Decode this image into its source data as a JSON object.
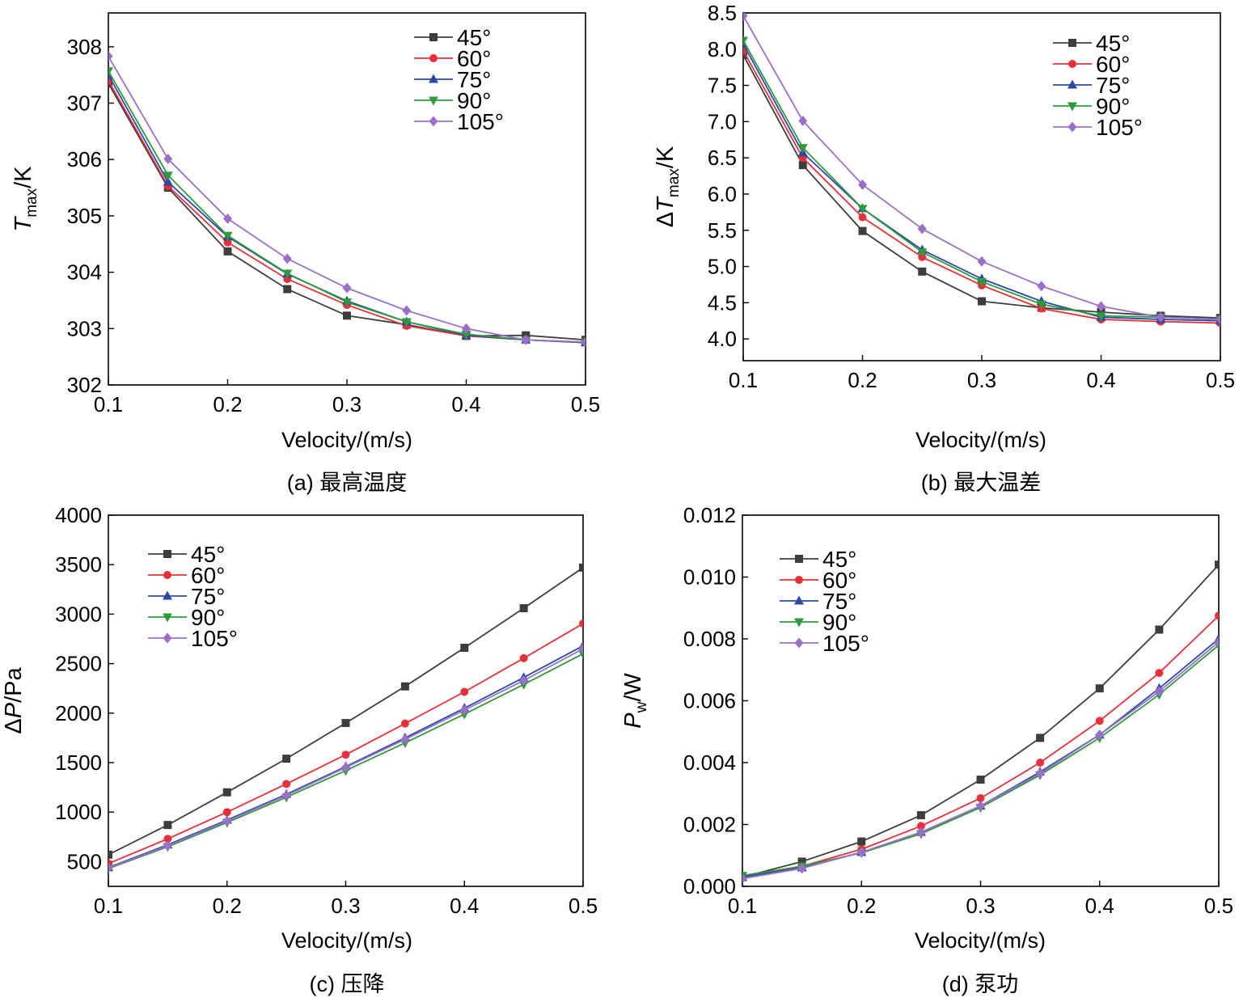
{
  "colors": {
    "45°": "#3d3d3d",
    "60°": "#e8303a",
    "75°": "#2c49a8",
    "90°": "#2e9a3c",
    "105°": "#9b6fc8"
  },
  "chart_data": [
    {
      "type": "line",
      "caption": "(a) 最高温度",
      "xlabel": "Velocity/(m/s)",
      "ylabel_symbol": "T",
      "ylabel_sub": "max",
      "ylabel_unit": "/K",
      "xlim": [
        0.1,
        0.5
      ],
      "ylim": [
        302,
        308.6
      ],
      "xticks": [
        "0.1",
        "0.2",
        "0.3",
        "0.4",
        "0.5"
      ],
      "yticks": [
        "302",
        "303",
        "304",
        "305",
        "306",
        "307",
        "308"
      ],
      "x": [
        0.1,
        0.15,
        0.2,
        0.25,
        0.3,
        0.35,
        0.4,
        0.45,
        0.5
      ],
      "series": [
        {
          "name": "45°",
          "marker": "square",
          "values": [
            307.35,
            305.5,
            304.37,
            303.7,
            303.23,
            303.07,
            302.87,
            302.88,
            302.8
          ]
        },
        {
          "name": "60°",
          "marker": "circle",
          "values": [
            307.4,
            305.53,
            304.53,
            303.88,
            303.42,
            303.05,
            302.87,
            302.8,
            302.75
          ]
        },
        {
          "name": "75°",
          "marker": "triangle-up",
          "values": [
            307.5,
            305.6,
            304.63,
            303.97,
            303.49,
            303.12,
            302.88,
            302.8,
            302.75
          ]
        },
        {
          "name": "90°",
          "marker": "triangle-down",
          "values": [
            307.57,
            305.72,
            304.65,
            303.98,
            303.47,
            303.12,
            302.9,
            302.8,
            302.76
          ]
        },
        {
          "name": "105°",
          "marker": "diamond",
          "values": [
            307.83,
            306.01,
            304.95,
            304.24,
            303.72,
            303.32,
            303.0,
            302.8,
            302.76
          ]
        }
      ]
    },
    {
      "type": "line",
      "caption": "(b) 最大温差",
      "xlabel": "Velocity/(m/s)",
      "ylabel_symbol": "ΔT",
      "ylabel_sub": "max",
      "ylabel_unit": "/K",
      "xlim": [
        0.1,
        0.5
      ],
      "ylim": [
        3.7,
        8.5
      ],
      "xticks": [
        "0.1",
        "0.2",
        "0.3",
        "0.4",
        "0.5"
      ],
      "yticks": [
        "4.0",
        "4.5",
        "5.0",
        "5.5",
        "6.0",
        "6.5",
        "7.0",
        "7.5",
        "8.0",
        "8.5"
      ],
      "x": [
        0.1,
        0.15,
        0.2,
        0.25,
        0.3,
        0.35,
        0.4,
        0.45,
        0.5
      ],
      "series": [
        {
          "name": "45°",
          "marker": "square",
          "values": [
            7.92,
            6.4,
            5.49,
            4.93,
            4.52,
            4.43,
            4.37,
            4.32,
            4.29
          ]
        },
        {
          "name": "60°",
          "marker": "circle",
          "values": [
            7.98,
            6.5,
            5.68,
            5.13,
            4.74,
            4.42,
            4.27,
            4.24,
            4.22
          ]
        },
        {
          "name": "75°",
          "marker": "triangle-up",
          "values": [
            8.07,
            6.57,
            5.8,
            5.23,
            4.83,
            4.52,
            4.3,
            4.27,
            4.25
          ]
        },
        {
          "name": "90°",
          "marker": "triangle-down",
          "values": [
            8.12,
            6.64,
            5.8,
            5.2,
            4.79,
            4.48,
            4.32,
            4.3,
            4.27
          ]
        },
        {
          "name": "105°",
          "marker": "diamond",
          "values": [
            8.46,
            7.01,
            6.13,
            5.52,
            5.07,
            4.73,
            4.45,
            4.3,
            4.27
          ]
        }
      ]
    },
    {
      "type": "line",
      "caption": "(c) 压降",
      "xlabel": "Velocity/(m/s)",
      "ylabel_symbol": "ΔP",
      "ylabel_sub": "",
      "ylabel_unit": "/Pa",
      "xlim": [
        0.1,
        0.5
      ],
      "ylim": [
        250,
        4000
      ],
      "xticks": [
        "0.1",
        "0.2",
        "0.3",
        "0.4",
        "0.5"
      ],
      "yticks": [
        "500",
        "1000",
        "1500",
        "2000",
        "2500",
        "3000",
        "3500",
        "4000"
      ],
      "x": [
        0.1,
        0.15,
        0.2,
        0.25,
        0.3,
        0.35,
        0.4,
        0.45,
        0.5
      ],
      "series": [
        {
          "name": "45°",
          "marker": "square",
          "values": [
            570,
            870,
            1200,
            1540,
            1900,
            2270,
            2660,
            3060,
            3470
          ]
        },
        {
          "name": "60°",
          "marker": "circle",
          "values": [
            480,
            730,
            1000,
            1285,
            1580,
            1895,
            2215,
            2555,
            2905
          ]
        },
        {
          "name": "75°",
          "marker": "triangle-up",
          "values": [
            440,
            670,
            920,
            1180,
            1460,
            1750,
            2050,
            2360,
            2680
          ]
        },
        {
          "name": "90°",
          "marker": "triangle-down",
          "values": [
            430,
            650,
            895,
            1150,
            1420,
            1700,
            1990,
            2290,
            2600
          ]
        },
        {
          "name": "105°",
          "marker": "diamond",
          "values": [
            435,
            660,
            910,
            1170,
            1450,
            1735,
            2030,
            2330,
            2650
          ]
        }
      ]
    },
    {
      "type": "line",
      "caption": "(d) 泵功",
      "xlabel": "Velocity/(m/s)",
      "ylabel_symbol": "P",
      "ylabel_sub": "w",
      "ylabel_unit": "/W",
      "xlim": [
        0.1,
        0.5
      ],
      "ylim": [
        0,
        0.012
      ],
      "xticks": [
        "0.1",
        "0.2",
        "0.3",
        "0.4",
        "0.5"
      ],
      "yticks": [
        "0.000",
        "0.002",
        "0.004",
        "0.006",
        "0.008",
        "0.010",
        "0.012"
      ],
      "x": [
        0.1,
        0.15,
        0.2,
        0.25,
        0.3,
        0.35,
        0.4,
        0.45,
        0.5
      ],
      "series": [
        {
          "name": "45°",
          "marker": "square",
          "values": [
            0.0003,
            0.0008,
            0.00145,
            0.0023,
            0.00345,
            0.0048,
            0.0064,
            0.0083,
            0.0104
          ]
        },
        {
          "name": "60°",
          "marker": "circle",
          "values": [
            0.0003,
            0.00065,
            0.0012,
            0.00195,
            0.00285,
            0.004,
            0.00535,
            0.0069,
            0.00875
          ]
        },
        {
          "name": "75°",
          "marker": "triangle-up",
          "values": [
            0.0003,
            0.0006,
            0.0011,
            0.00175,
            0.0026,
            0.0037,
            0.0049,
            0.0064,
            0.008
          ]
        },
        {
          "name": "90°",
          "marker": "triangle-down",
          "values": [
            0.00035,
            0.00065,
            0.00108,
            0.0017,
            0.00255,
            0.0036,
            0.0048,
            0.0062,
            0.0078
          ]
        },
        {
          "name": "105°",
          "marker": "diamond",
          "values": [
            0.00025,
            0.00058,
            0.0011,
            0.00175,
            0.0026,
            0.00365,
            0.0049,
            0.0063,
            0.0079
          ]
        }
      ]
    }
  ]
}
